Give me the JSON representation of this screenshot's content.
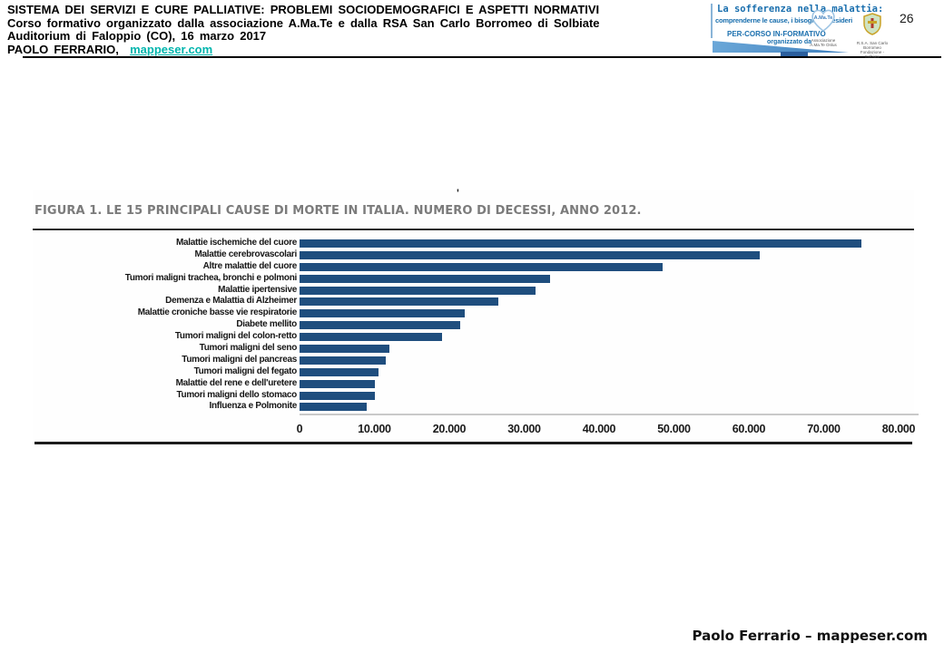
{
  "header": {
    "title_lines": [
      "SISTEMA DEI SERVIZI E CURE PALLIATIVE: PROBLEMI SOCIODEMOGRAFICI E ASPETTI NORMATIVI",
      "Corso formativo organizzato dalla associazione A.Ma.Te e dalla RSA San Carlo Borromeo di Solbiate",
      "Auditorium di Faloppio (CO), 16 marzo 2017"
    ],
    "author_label": "PAOLO FERRARIO,",
    "author_link": "mappeser.com"
  },
  "page_number": "26",
  "logo_banner": {
    "title": "La sofferenza nella malattia:",
    "subtitle": "comprenderne le cause, i bisogni e i desideri",
    "course_label": "PER-CORSO IN-FORMATIVO",
    "organized_by": "organizzato da",
    "amate_logo_text": "A.Ma.Te",
    "amate_caption": "Associazione A.Ma.Te Onlus",
    "rsa_caption": "R.S.A. San Carlo Borromeo Fondazione - Solbiate"
  },
  "figure": {
    "stray_mark": "'",
    "title": "FIGURA 1.  LE 15 PRINCIPALI CAUSE DI MORTE IN ITALIA. NUMERO DI DECESSI, ANNO 2012."
  },
  "chart_data": {
    "type": "bar",
    "orientation": "horizontal",
    "title": "FIGURA 1. LE 15 PRINCIPALI CAUSE DI MORTE IN ITALIA. NUMERO DI DECESSI, ANNO 2012.",
    "categories": [
      "Malattie ischemiche del cuore",
      "Malattie cerebrovascolari",
      "Altre malattie del cuore",
      "Tumori maligni trachea, bronchi e polmoni",
      "Malattie ipertensive",
      "Demenza e Malattia di Alzheimer",
      "Malattie croniche basse vie respiratorie",
      "Diabete mellito",
      "Tumori maligni del colon-retto",
      "Tumori maligni del seno",
      "Tumori maligni del pancreas",
      "Tumori maligni del fegato",
      "Malattie del rene e dell'uretere",
      "Tumori maligni dello stomaco",
      "Influenza e Polmonite"
    ],
    "values": [
      75000,
      61500,
      48500,
      33500,
      31500,
      26500,
      22000,
      21500,
      19000,
      12000,
      11500,
      10500,
      10000,
      10000,
      9000
    ],
    "x_ticks": [
      "0",
      "10.000",
      "20.000",
      "30.000",
      "40.000",
      "50.000",
      "60.000",
      "70.000",
      "80.000"
    ],
    "x_tick_values": [
      0,
      10000,
      20000,
      30000,
      40000,
      50000,
      60000,
      70000,
      80000
    ],
    "xlim": [
      0,
      80000
    ],
    "xlabel": "",
    "ylabel": "",
    "grid": false,
    "legend": "none",
    "bar_color": "#1f4e7e"
  },
  "footer": {
    "credit": "Paolo Ferrario – mappeser.com"
  },
  "colors": {
    "link_teal": "#00b5ad",
    "banner_blue": "#1a6fae",
    "figure_title_gray": "#7b7b7b",
    "bar_navy": "#1f4e7e",
    "axis_gray": "#c9c9c9"
  }
}
